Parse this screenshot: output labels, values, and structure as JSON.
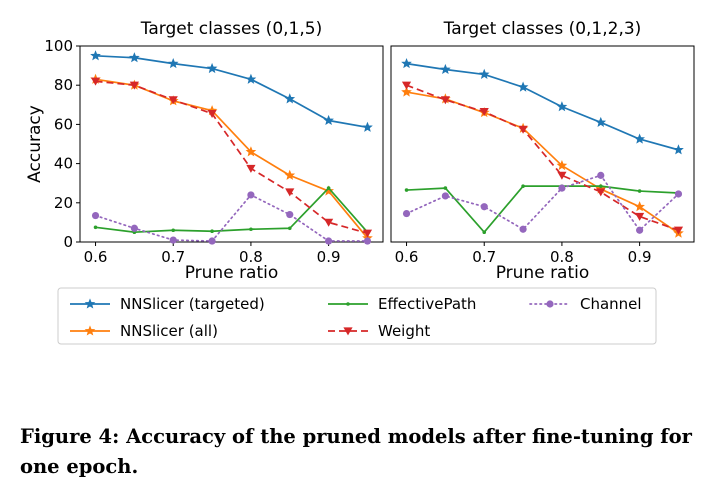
{
  "chart_data": [
    {
      "type": "line",
      "title": "Target classes (0,1,5)",
      "xlabel": "Prune ratio",
      "ylabel": "Accuracy",
      "xlim": [
        0.58,
        0.97
      ],
      "ylim": [
        0,
        100
      ],
      "xticks": [
        "0.6",
        "0.7",
        "0.8",
        "0.9"
      ],
      "yticks": [
        "0",
        "20",
        "40",
        "60",
        "80",
        "100"
      ],
      "x": [
        0.6,
        0.65,
        0.7,
        0.75,
        0.8,
        0.85,
        0.9,
        0.95
      ],
      "series": [
        {
          "name": "NNSlicer (targeted)",
          "values": [
            95,
            94,
            91,
            88.5,
            83,
            73,
            62,
            58.5
          ]
        },
        {
          "name": "NNSlicer (all)",
          "values": [
            83,
            80,
            72,
            67,
            46,
            34,
            26,
            2
          ]
        },
        {
          "name": "EffectivePath",
          "values": [
            7.5,
            5,
            6,
            5.5,
            6.5,
            7,
            27.5,
            5
          ]
        },
        {
          "name": "Weight",
          "values": [
            82,
            80,
            72.5,
            65.5,
            37.5,
            25.5,
            10,
            4.5
          ]
        },
        {
          "name": "Channel",
          "values": [
            13.5,
            7,
            1,
            0.5,
            24,
            14,
            0.5,
            0.5
          ]
        }
      ]
    },
    {
      "type": "line",
      "title": "Target classes (0,1,2,3)",
      "xlabel": "Prune ratio",
      "ylabel": "",
      "xlim": [
        0.58,
        0.97
      ],
      "ylim": [
        0,
        100
      ],
      "xticks": [
        "0.6",
        "0.7",
        "0.8",
        "0.9"
      ],
      "yticks": [],
      "x": [
        0.6,
        0.65,
        0.7,
        0.75,
        0.8,
        0.85,
        0.9,
        0.95
      ],
      "series": [
        {
          "name": "NNSlicer (targeted)",
          "values": [
            91,
            88,
            85.5,
            79,
            69,
            61,
            52.5,
            47
          ]
        },
        {
          "name": "NNSlicer (all)",
          "values": [
            76.5,
            73,
            66,
            58,
            39,
            27,
            18,
            4.5
          ]
        },
        {
          "name": "EffectivePath",
          "values": [
            26.5,
            27.5,
            5,
            28.5,
            28.5,
            28.5,
            26,
            25
          ]
        },
        {
          "name": "Weight",
          "values": [
            80,
            72.5,
            66.5,
            57.5,
            34,
            25.5,
            13,
            6
          ]
        },
        {
          "name": "Channel",
          "values": [
            14.5,
            23.5,
            18,
            6.5,
            27.5,
            34,
            6,
            24.5
          ]
        }
      ]
    }
  ],
  "legend": {
    "items": [
      {
        "label": "NNSlicer (targeted)",
        "color": "#1f77b4",
        "marker": "star",
        "dash": "solid"
      },
      {
        "label": "EffectivePath",
        "color": "#2ca02c",
        "marker": "dot",
        "dash": "solid"
      },
      {
        "label": "Channel",
        "color": "#9467bd",
        "marker": "circle",
        "dash": "dotted"
      },
      {
        "label": "NNSlicer (all)",
        "color": "#ff7f0e",
        "marker": "star",
        "dash": "solid"
      },
      {
        "label": "Weight",
        "color": "#d62728",
        "marker": "triangle-down",
        "dash": "dashed"
      }
    ]
  },
  "caption": "Figure 4: Accuracy of the pruned models after fine-tuning for one epoch."
}
